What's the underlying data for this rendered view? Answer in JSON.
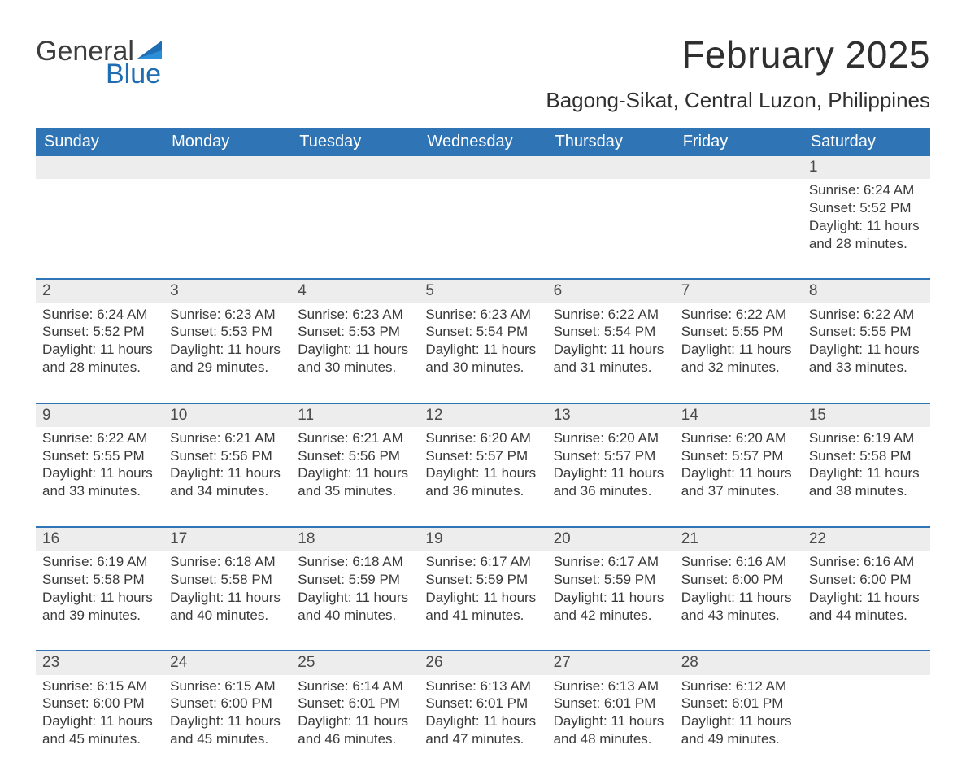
{
  "brand": {
    "w1": "General",
    "w2": "Blue",
    "accent": "#1f6db3"
  },
  "title": "February 2025",
  "location": "Bagong-Sikat, Central Luzon, Philippines",
  "colors": {
    "header_bg": "#2f74b5",
    "header_fg": "#ffffff",
    "daynum_bg": "#ededed",
    "rule": "#2f74b5",
    "text": "#343434"
  },
  "fonts": {
    "title_pt": 46,
    "location_pt": 26,
    "dow_pt": 20,
    "body_pt": 17
  },
  "dow": [
    "Sunday",
    "Monday",
    "Tuesday",
    "Wednesday",
    "Thursday",
    "Friday",
    "Saturday"
  ],
  "labels": {
    "sunrise": "Sunrise:",
    "sunset": "Sunset:",
    "daylight": "Daylight:"
  },
  "weeks": [
    [
      null,
      null,
      null,
      null,
      null,
      null,
      {
        "n": "1",
        "sr": "6:24 AM",
        "ss": "5:52 PM",
        "dl": "11 hours and 28 minutes."
      }
    ],
    [
      {
        "n": "2",
        "sr": "6:24 AM",
        "ss": "5:52 PM",
        "dl": "11 hours and 28 minutes."
      },
      {
        "n": "3",
        "sr": "6:23 AM",
        "ss": "5:53 PM",
        "dl": "11 hours and 29 minutes."
      },
      {
        "n": "4",
        "sr": "6:23 AM",
        "ss": "5:53 PM",
        "dl": "11 hours and 30 minutes."
      },
      {
        "n": "5",
        "sr": "6:23 AM",
        "ss": "5:54 PM",
        "dl": "11 hours and 30 minutes."
      },
      {
        "n": "6",
        "sr": "6:22 AM",
        "ss": "5:54 PM",
        "dl": "11 hours and 31 minutes."
      },
      {
        "n": "7",
        "sr": "6:22 AM",
        "ss": "5:55 PM",
        "dl": "11 hours and 32 minutes."
      },
      {
        "n": "8",
        "sr": "6:22 AM",
        "ss": "5:55 PM",
        "dl": "11 hours and 33 minutes."
      }
    ],
    [
      {
        "n": "9",
        "sr": "6:22 AM",
        "ss": "5:55 PM",
        "dl": "11 hours and 33 minutes."
      },
      {
        "n": "10",
        "sr": "6:21 AM",
        "ss": "5:56 PM",
        "dl": "11 hours and 34 minutes."
      },
      {
        "n": "11",
        "sr": "6:21 AM",
        "ss": "5:56 PM",
        "dl": "11 hours and 35 minutes."
      },
      {
        "n": "12",
        "sr": "6:20 AM",
        "ss": "5:57 PM",
        "dl": "11 hours and 36 minutes."
      },
      {
        "n": "13",
        "sr": "6:20 AM",
        "ss": "5:57 PM",
        "dl": "11 hours and 36 minutes."
      },
      {
        "n": "14",
        "sr": "6:20 AM",
        "ss": "5:57 PM",
        "dl": "11 hours and 37 minutes."
      },
      {
        "n": "15",
        "sr": "6:19 AM",
        "ss": "5:58 PM",
        "dl": "11 hours and 38 minutes."
      }
    ],
    [
      {
        "n": "16",
        "sr": "6:19 AM",
        "ss": "5:58 PM",
        "dl": "11 hours and 39 minutes."
      },
      {
        "n": "17",
        "sr": "6:18 AM",
        "ss": "5:58 PM",
        "dl": "11 hours and 40 minutes."
      },
      {
        "n": "18",
        "sr": "6:18 AM",
        "ss": "5:59 PM",
        "dl": "11 hours and 40 minutes."
      },
      {
        "n": "19",
        "sr": "6:17 AM",
        "ss": "5:59 PM",
        "dl": "11 hours and 41 minutes."
      },
      {
        "n": "20",
        "sr": "6:17 AM",
        "ss": "5:59 PM",
        "dl": "11 hours and 42 minutes."
      },
      {
        "n": "21",
        "sr": "6:16 AM",
        "ss": "6:00 PM",
        "dl": "11 hours and 43 minutes."
      },
      {
        "n": "22",
        "sr": "6:16 AM",
        "ss": "6:00 PM",
        "dl": "11 hours and 44 minutes."
      }
    ],
    [
      {
        "n": "23",
        "sr": "6:15 AM",
        "ss": "6:00 PM",
        "dl": "11 hours and 45 minutes."
      },
      {
        "n": "24",
        "sr": "6:15 AM",
        "ss": "6:00 PM",
        "dl": "11 hours and 45 minutes."
      },
      {
        "n": "25",
        "sr": "6:14 AM",
        "ss": "6:01 PM",
        "dl": "11 hours and 46 minutes."
      },
      {
        "n": "26",
        "sr": "6:13 AM",
        "ss": "6:01 PM",
        "dl": "11 hours and 47 minutes."
      },
      {
        "n": "27",
        "sr": "6:13 AM",
        "ss": "6:01 PM",
        "dl": "11 hours and 48 minutes."
      },
      {
        "n": "28",
        "sr": "6:12 AM",
        "ss": "6:01 PM",
        "dl": "11 hours and 49 minutes."
      },
      null
    ]
  ]
}
